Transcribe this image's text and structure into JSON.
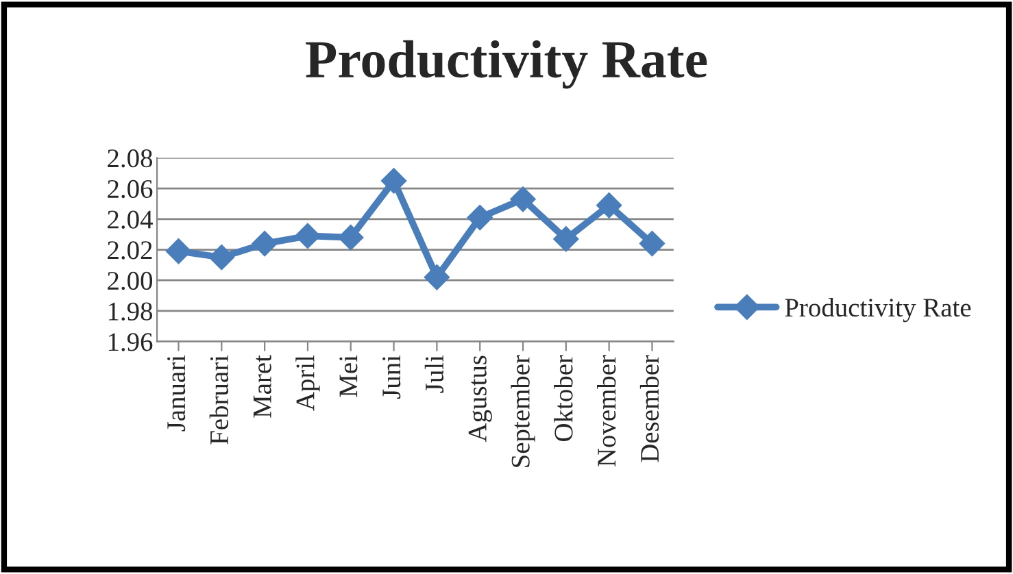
{
  "chart_data": {
    "type": "line",
    "title": "Productivity Rate",
    "categories": [
      "Januari",
      "Februari",
      "Maret",
      "April",
      "Mei",
      "Juni",
      "Juli",
      "Agustus",
      "September",
      "Oktober",
      "November",
      "Desember"
    ],
    "series": [
      {
        "name": "Productivity Rate",
        "color": "#4a7ebb",
        "values": [
          2.019,
          2.015,
          2.024,
          2.029,
          2.028,
          2.065,
          2.002,
          2.041,
          2.053,
          2.027,
          2.049,
          2.024
        ]
      }
    ],
    "ylim": [
      1.96,
      2.08
    ],
    "yticks": [
      {
        "value": 1.96,
        "label": "1.96"
      },
      {
        "value": 1.98,
        "label": "1.98"
      },
      {
        "value": 2.0,
        "label": "2.00"
      },
      {
        "value": 2.02,
        "label": "2.02"
      },
      {
        "value": 2.04,
        "label": "2.04"
      },
      {
        "value": 2.06,
        "label": "2.06"
      },
      {
        "value": 2.08,
        "label": "2.08"
      }
    ],
    "grid": "y",
    "legend": "right",
    "marker": "diamond",
    "line_style": "solid"
  }
}
